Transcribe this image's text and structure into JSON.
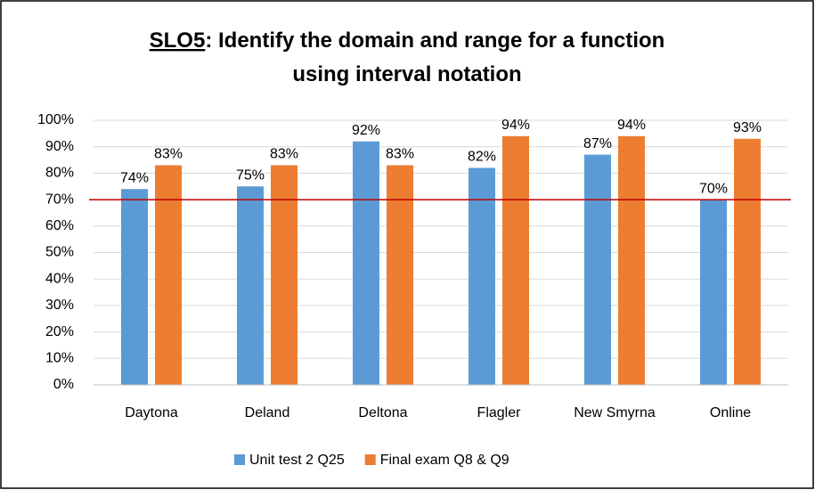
{
  "chart_data": {
    "type": "bar",
    "title_lines": [
      [
        "SLO5",
        ": Identify the domain and range for a function"
      ],
      [
        "using interval notation"
      ]
    ],
    "categories": [
      "Daytona",
      "Deland",
      "Deltona",
      "Flagler",
      "New Smyrna",
      "Online"
    ],
    "series": [
      {
        "name": "Unit test 2 Q25",
        "color": "#5b9bd5",
        "values": [
          74,
          75,
          92,
          82,
          87,
          70
        ],
        "value_labels": [
          "74%",
          "75%",
          "92%",
          "82%",
          "87%",
          "70%"
        ]
      },
      {
        "name": "Final exam Q8 & Q9",
        "color": "#ed7d31",
        "values": [
          83,
          83,
          83,
          94,
          94,
          93
        ],
        "value_labels": [
          "83%",
          "83%",
          "83%",
          "94%",
          "94%",
          "93%"
        ]
      }
    ],
    "ylim": [
      0,
      100
    ],
    "yticks": [
      {
        "value": 0,
        "label": "0%"
      },
      {
        "value": 10,
        "label": "10%"
      },
      {
        "value": 20,
        "label": "20%"
      },
      {
        "value": 30,
        "label": "30%"
      },
      {
        "value": 40,
        "label": "40%"
      },
      {
        "value": 50,
        "label": "50%"
      },
      {
        "value": 60,
        "label": "60%"
      },
      {
        "value": 70,
        "label": "70%"
      },
      {
        "value": 80,
        "label": "80%"
      },
      {
        "value": 90,
        "label": "90%"
      },
      {
        "value": 100,
        "label": "100%"
      }
    ],
    "grid": true,
    "reference_line": {
      "value": 70,
      "color": "#c00000"
    },
    "legend": "bottom"
  }
}
